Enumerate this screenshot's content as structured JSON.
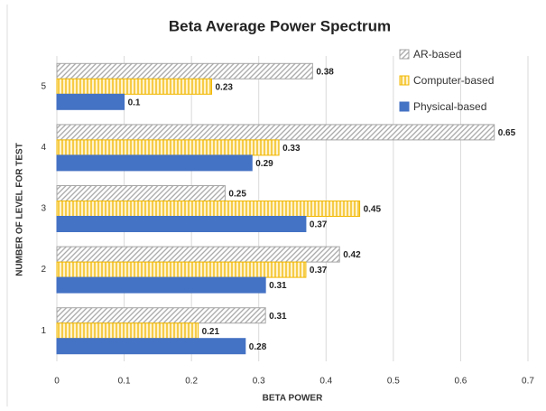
{
  "chart_data": {
    "type": "bar",
    "orientation": "horizontal",
    "title": "Beta Average Power Spectrum",
    "x_label": "BETA POWER",
    "y_label": "NUMBER OF LEVEL FOR TEST",
    "categories": [
      "1",
      "2",
      "3",
      "4",
      "5"
    ],
    "series": [
      {
        "name": "AR-based",
        "color": "#a6a6a6",
        "hatch": "diagonal",
        "values": [
          0.31,
          0.42,
          0.25,
          0.65,
          0.38
        ]
      },
      {
        "name": "Computer-based",
        "color": "#f2b800",
        "hatch": "vertical",
        "values": [
          0.21,
          0.37,
          0.45,
          0.33,
          0.23
        ]
      },
      {
        "name": "Physical-based",
        "color": "#4472c4",
        "hatch": "none",
        "values": [
          0.28,
          0.31,
          0.37,
          0.29,
          0.1
        ]
      }
    ],
    "xlim": [
      0,
      0.7
    ],
    "xticks": [
      0,
      0.1,
      0.2,
      0.3,
      0.4,
      0.5,
      0.6,
      0.7
    ],
    "grid": true,
    "legend": "upper right"
  }
}
